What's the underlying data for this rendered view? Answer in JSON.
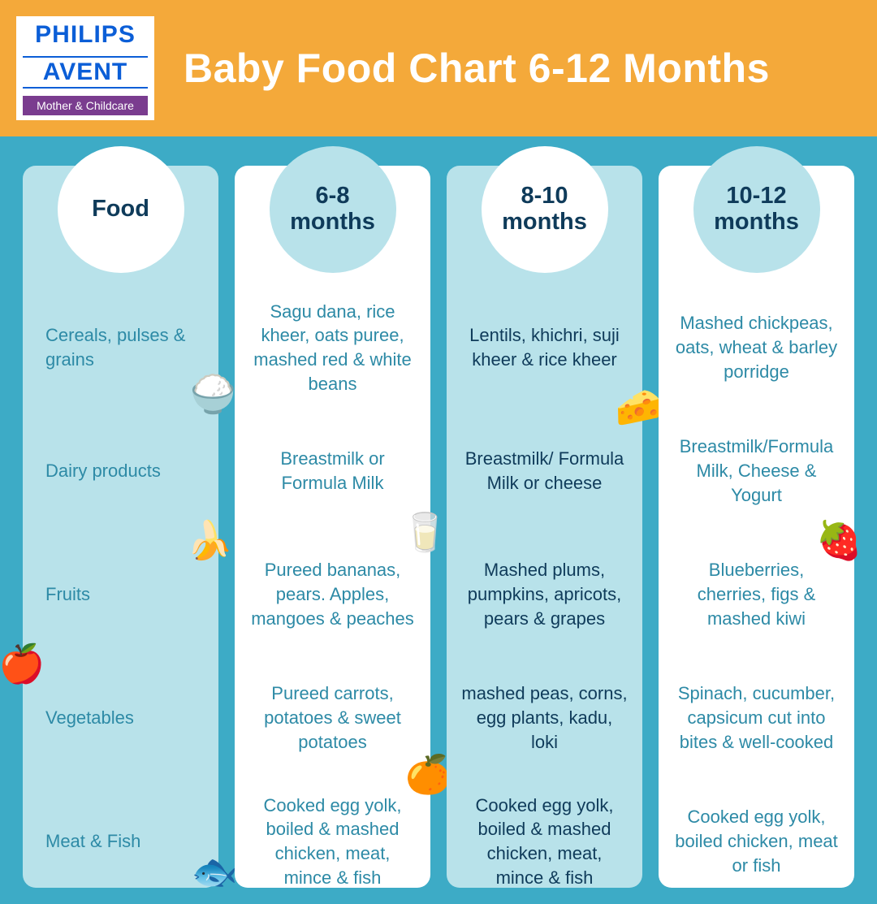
{
  "colors": {
    "header_bg": "#f4a93a",
    "main_bg": "#3dabc6",
    "light_blue": "#b8e2ea",
    "white": "#ffffff",
    "dark_navy": "#0f3b5a",
    "teal_text": "#2d8aa6",
    "philips_blue": "#0b5ed7",
    "tag_purple": "#7a3c8f"
  },
  "logo": {
    "brand": "PHILIPS",
    "sub_brand": "AVENT",
    "tagline": "Mother & Childcare"
  },
  "title": "Baby Food Chart 6-12 Months",
  "columns": [
    {
      "header": "Food",
      "circle_bg": "white",
      "col_bg": "light",
      "text_color": "teal",
      "cells": [
        "Cereals, pulses & grains",
        "Dairy products",
        "Fruits",
        "Vegetables",
        "Meat & Fish"
      ]
    },
    {
      "header": "6-8 months",
      "circle_bg": "blue",
      "col_bg": "white",
      "text_color": "teal",
      "cells": [
        "Sagu dana, rice kheer, oats puree, mashed red & white beans",
        "Breastmilk or Formula Milk",
        "Pureed bananas, pears. Apples, mangoes & peaches",
        "Pureed carrots, potatoes & sweet potatoes",
        "Cooked egg yolk, boiled & mashed chicken, meat, mince & fish"
      ]
    },
    {
      "header": "8-10 months",
      "circle_bg": "white",
      "col_bg": "light",
      "text_color": "dark",
      "cells": [
        "Lentils, khichri, suji kheer & rice kheer",
        "Breastmilk/ Formula Milk or cheese",
        "Mashed plums, pumpkins, apricots, pears & grapes",
        "mashed peas, corns, egg plants, kadu, loki",
        "Cooked egg yolk, boiled & mashed chicken, meat, mince & fish"
      ]
    },
    {
      "header": "10-12 months",
      "circle_bg": "blue",
      "col_bg": "white",
      "text_color": "teal",
      "cells": [
        "Mashed chickpeas, oats, wheat & barley porridge",
        "Breastmilk/Formula Milk, Cheese & Yogurt",
        "Blueberries, cherries, figs & mashed kiwi",
        "Spinach, cucumber, capsicum cut into bites & well-cooked",
        "Cooked egg yolk, boiled chicken, meat or fish"
      ]
    }
  ],
  "icons": [
    {
      "name": "rice-bowl-icon",
      "glyph": "🍚",
      "col": 0,
      "row": 0,
      "pos": "right:-22px;bottom:-12px"
    },
    {
      "name": "banana-icon",
      "glyph": "🍌",
      "col": 0,
      "row": 1,
      "pos": "right:-18px;bottom:-40px"
    },
    {
      "name": "apple-icon",
      "glyph": "🍎",
      "col": 0,
      "row": 3,
      "pos": "left:-30px;top:-22px"
    },
    {
      "name": "salmon-icon",
      "glyph": "🐟",
      "col": 0,
      "row": 4,
      "pos": "right:-24px;bottom:8px"
    },
    {
      "name": "milk-jug-icon",
      "glyph": "🥛",
      "col": 1,
      "row": 1,
      "pos": "right:-22px;bottom:-30px"
    },
    {
      "name": "orange-icon",
      "glyph": "🍊",
      "col": 1,
      "row": 3,
      "pos": "right:-26px;bottom:-24px"
    },
    {
      "name": "cheese-icon",
      "glyph": "🧀",
      "col": 2,
      "row": 0,
      "pos": "right:-24px;bottom:-28px"
    },
    {
      "name": "strawberry-icon",
      "glyph": "🍓",
      "col": 3,
      "row": 1,
      "pos": "right:-10px;bottom:-40px"
    }
  ]
}
